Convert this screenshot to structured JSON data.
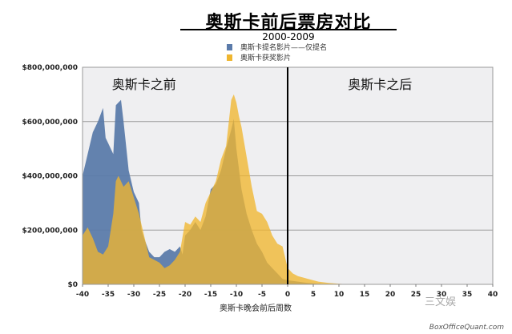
{
  "chart_data": {
    "type": "area",
    "title": "奥斯卡前后票房对比",
    "subtitle": "2000-2009",
    "xlabel": "奥斯卡晚会前后周数",
    "ylabel": "",
    "xlim": [
      -40,
      40
    ],
    "ylim": [
      0,
      800000000
    ],
    "x_ticks": [
      -40,
      -35,
      -30,
      -25,
      -20,
      -15,
      -10,
      -5,
      0,
      5,
      10,
      15,
      20,
      25,
      30,
      35,
      40
    ],
    "y_ticks": [
      0,
      200000000,
      400000000,
      600000000,
      800000000
    ],
    "y_tick_labels": [
      "$0",
      "$200,000,000",
      "$400,000,000",
      "$600,000,000",
      "$800,000,000"
    ],
    "grid": true,
    "legend_position": "top-center",
    "regions": [
      {
        "label": "奥斯卡之前",
        "x_center": -28
      },
      {
        "label": "奥斯卡之后",
        "x_center": 18
      }
    ],
    "divider_x": 0,
    "series": [
      {
        "name": "奥斯卡提名影片——仅提名",
        "color": "#5b7baa",
        "points": [
          [
            -40,
            400000000
          ],
          [
            -39,
            480000000
          ],
          [
            -38,
            560000000
          ],
          [
            -37,
            600000000
          ],
          [
            -36,
            650000000
          ],
          [
            -35.5,
            540000000
          ],
          [
            -35,
            520000000
          ],
          [
            -34,
            480000000
          ],
          [
            -33.5,
            660000000
          ],
          [
            -33,
            670000000
          ],
          [
            -32.5,
            680000000
          ],
          [
            -32,
            600000000
          ],
          [
            -31,
            420000000
          ],
          [
            -30,
            340000000
          ],
          [
            -29,
            300000000
          ],
          [
            -28.5,
            200000000
          ],
          [
            -28,
            170000000
          ],
          [
            -27,
            120000000
          ],
          [
            -26,
            100000000
          ],
          [
            -25,
            100000000
          ],
          [
            -24,
            120000000
          ],
          [
            -23,
            130000000
          ],
          [
            -22,
            120000000
          ],
          [
            -21,
            140000000
          ],
          [
            -20.5,
            110000000
          ],
          [
            -20,
            180000000
          ],
          [
            -19,
            200000000
          ],
          [
            -18,
            230000000
          ],
          [
            -17,
            200000000
          ],
          [
            -16,
            250000000
          ],
          [
            -15,
            350000000
          ],
          [
            -14,
            370000000
          ],
          [
            -13,
            420000000
          ],
          [
            -12,
            500000000
          ],
          [
            -11,
            570000000
          ],
          [
            -10.5,
            610000000
          ],
          [
            -10,
            500000000
          ],
          [
            -9,
            350000000
          ],
          [
            -8,
            260000000
          ],
          [
            -7,
            200000000
          ],
          [
            -6,
            150000000
          ],
          [
            -5,
            120000000
          ],
          [
            -4,
            80000000
          ],
          [
            -3,
            60000000
          ],
          [
            -2,
            40000000
          ],
          [
            -1,
            20000000
          ],
          [
            0,
            15000000
          ],
          [
            2,
            10000000
          ],
          [
            4,
            5000000
          ],
          [
            6,
            2000000
          ],
          [
            8,
            0
          ],
          [
            40,
            0
          ]
        ]
      },
      {
        "name": "奥斯卡获奖影片",
        "color": "#efb630",
        "points": [
          [
            -40,
            180000000
          ],
          [
            -39,
            210000000
          ],
          [
            -38,
            170000000
          ],
          [
            -37,
            120000000
          ],
          [
            -36,
            110000000
          ],
          [
            -35,
            140000000
          ],
          [
            -34,
            260000000
          ],
          [
            -33.5,
            380000000
          ],
          [
            -33,
            400000000
          ],
          [
            -32,
            360000000
          ],
          [
            -31,
            380000000
          ],
          [
            -30,
            320000000
          ],
          [
            -29,
            260000000
          ],
          [
            -28,
            180000000
          ],
          [
            -27,
            100000000
          ],
          [
            -26,
            90000000
          ],
          [
            -25,
            80000000
          ],
          [
            -24,
            60000000
          ],
          [
            -23,
            70000000
          ],
          [
            -22,
            90000000
          ],
          [
            -21,
            120000000
          ],
          [
            -20,
            230000000
          ],
          [
            -19,
            220000000
          ],
          [
            -18,
            250000000
          ],
          [
            -17,
            230000000
          ],
          [
            -16,
            300000000
          ],
          [
            -15,
            340000000
          ],
          [
            -14,
            380000000
          ],
          [
            -13,
            460000000
          ],
          [
            -12,
            510000000
          ],
          [
            -11,
            680000000
          ],
          [
            -10.5,
            700000000
          ],
          [
            -10,
            670000000
          ],
          [
            -9.5,
            620000000
          ],
          [
            -9,
            580000000
          ],
          [
            -8,
            470000000
          ],
          [
            -7,
            360000000
          ],
          [
            -6,
            270000000
          ],
          [
            -5,
            260000000
          ],
          [
            -4,
            230000000
          ],
          [
            -3,
            180000000
          ],
          [
            -2,
            150000000
          ],
          [
            -1,
            140000000
          ],
          [
            0,
            60000000
          ],
          [
            1,
            40000000
          ],
          [
            2,
            30000000
          ],
          [
            4,
            20000000
          ],
          [
            6,
            10000000
          ],
          [
            8,
            5000000
          ],
          [
            10,
            2000000
          ],
          [
            12,
            0
          ],
          [
            40,
            0
          ]
        ]
      }
    ]
  },
  "watermark": {
    "site": "BoxOfficeQuant.com",
    "brand": "三文娱"
  },
  "colors": {
    "plot_bg": "#efeff1",
    "gridline": "#9a9a9a"
  }
}
